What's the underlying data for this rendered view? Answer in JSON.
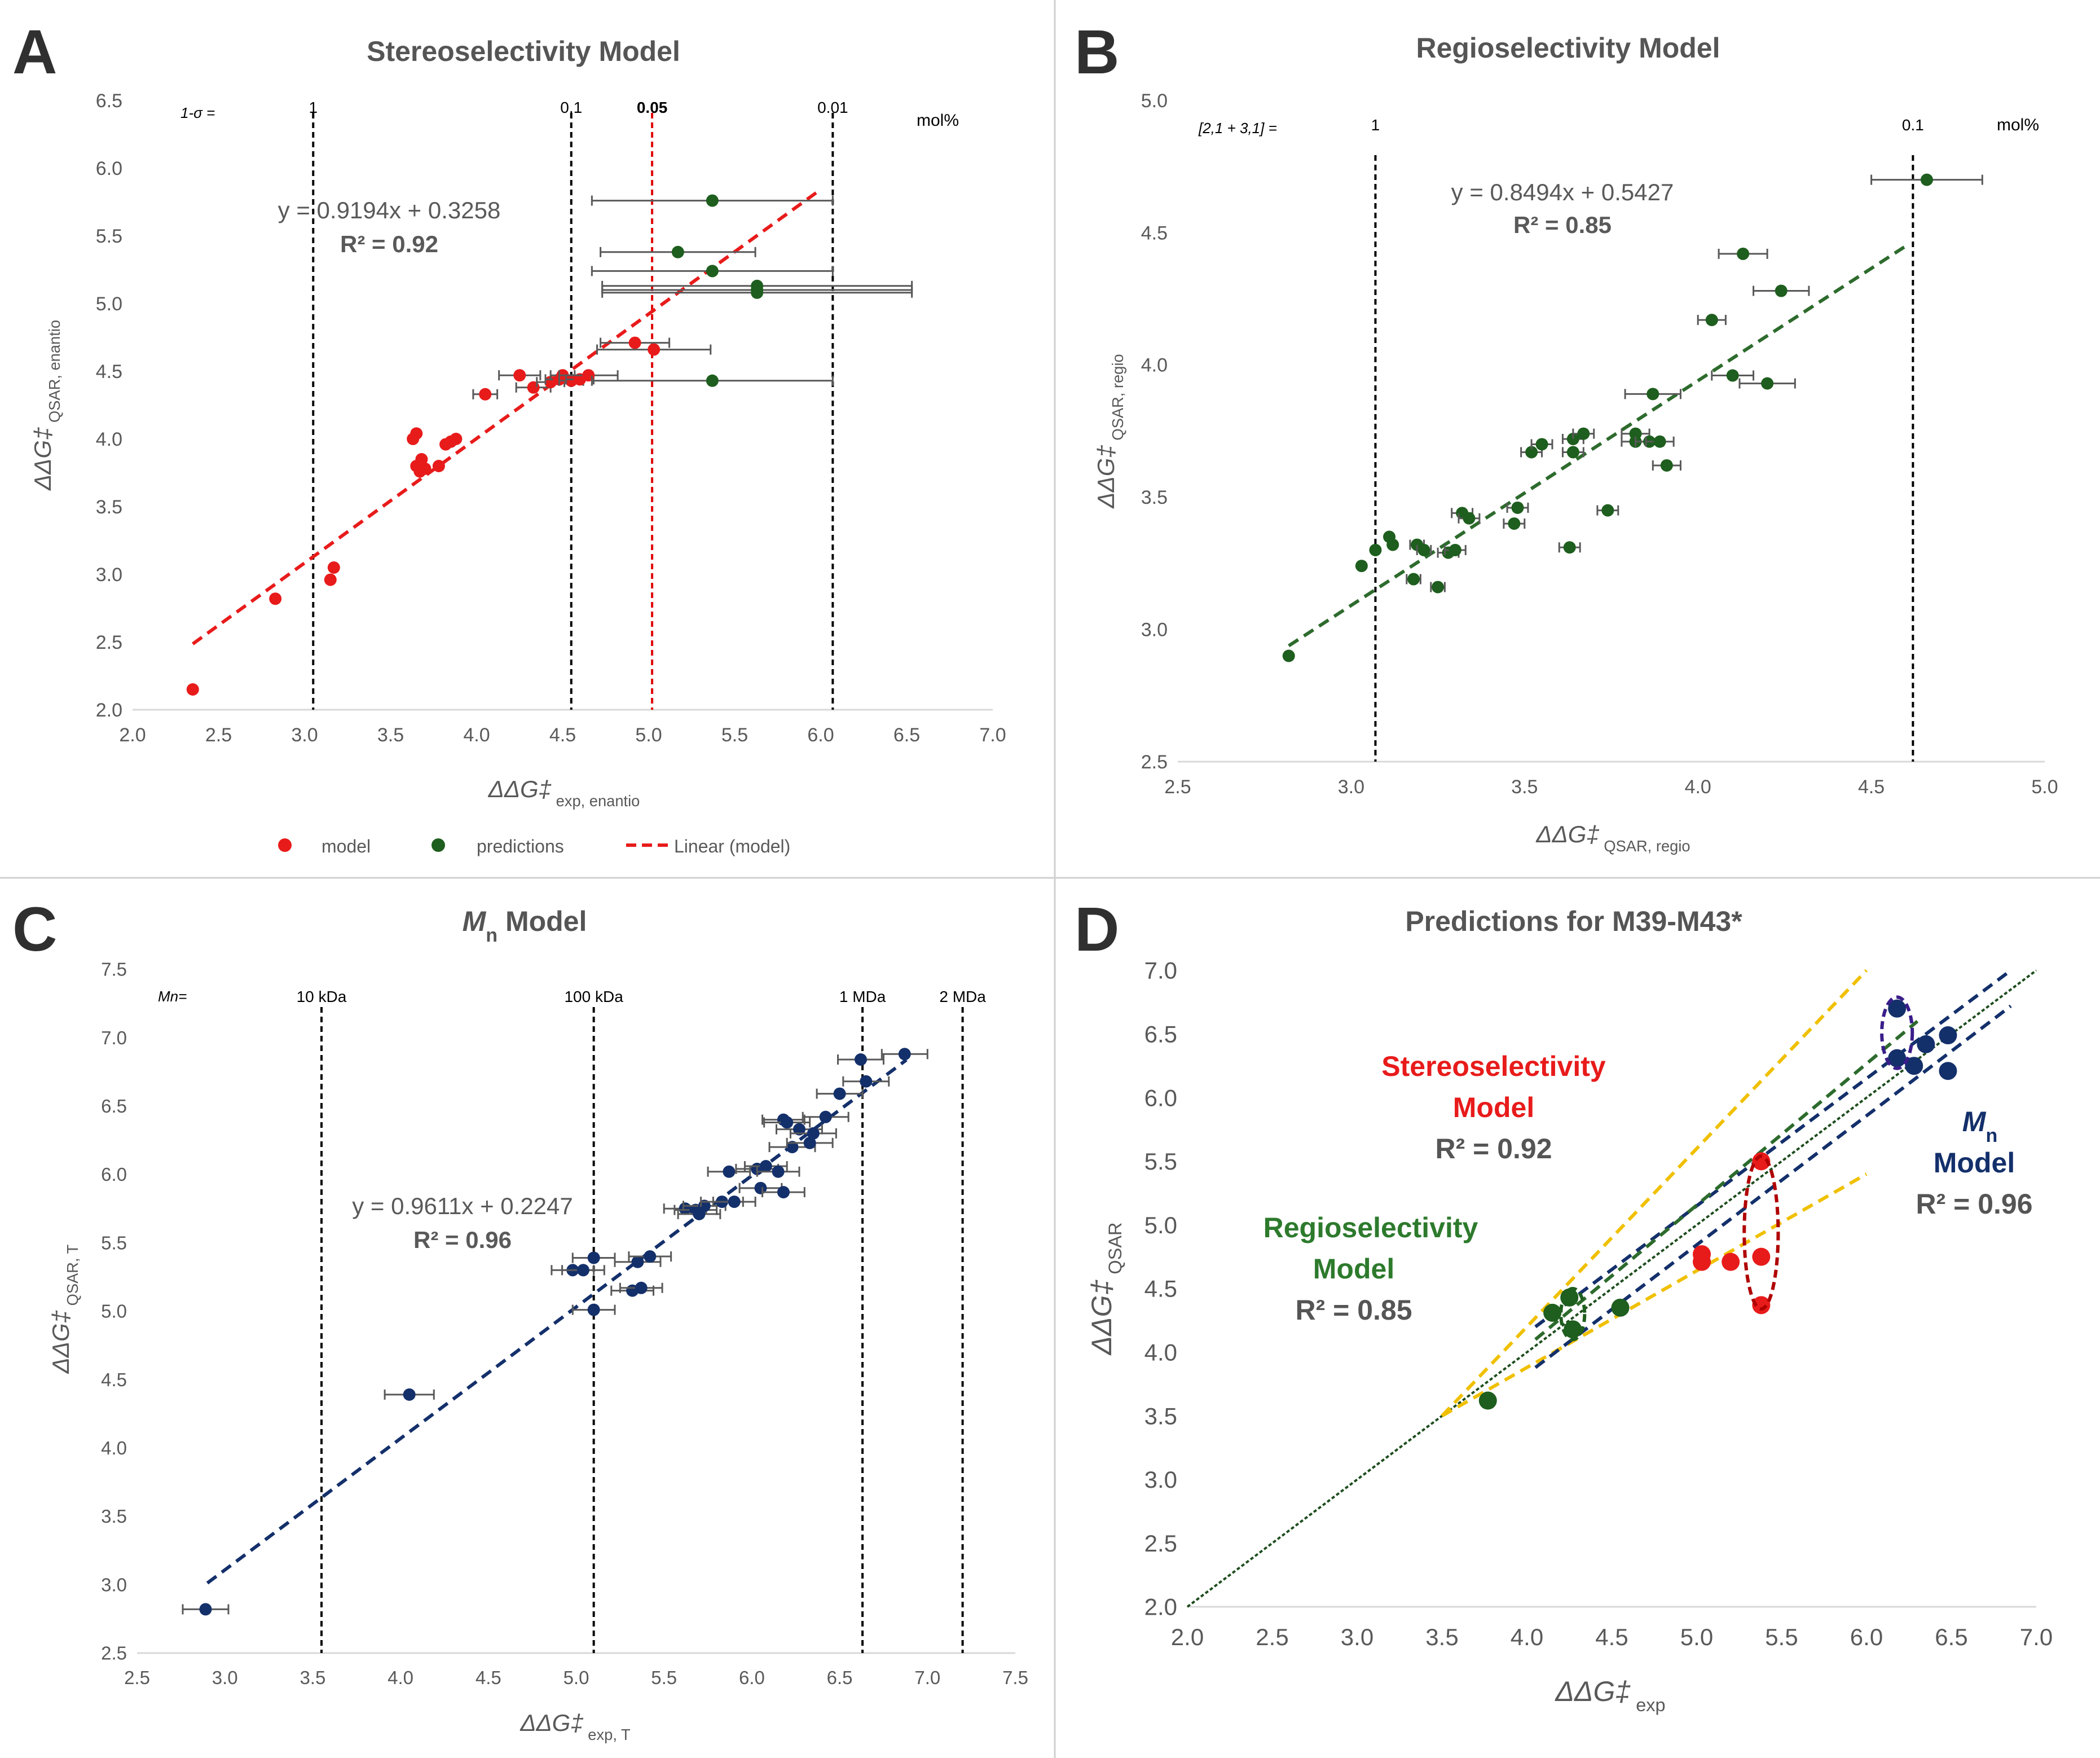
{
  "chart_data": [
    {
      "panel": "A",
      "type": "scatter",
      "title": "Stereoselectivity Model",
      "xlabel": {
        "main": "ΔΔG‡",
        "sub": "exp, enantio"
      },
      "ylabel": {
        "main": "ΔΔG‡",
        "sub": "QSAR, enantio"
      },
      "xlim": [
        2.0,
        7.0
      ],
      "ylim": [
        2.0,
        6.5
      ],
      "xticks": [
        "2.0",
        "2.5",
        "3.0",
        "3.5",
        "4.0",
        "4.5",
        "5.0",
        "5.5",
        "6.0",
        "6.5",
        "7.0"
      ],
      "yticks": [
        "2.0",
        "2.5",
        "3.0",
        "3.5",
        "4.0",
        "4.5",
        "5.0",
        "5.5",
        "6.0",
        "6.5"
      ],
      "equation": "y = 0.9194x + 0.3258",
      "r2": "R² = 0.92",
      "vlines": [
        {
          "x": 3.05,
          "label": "1",
          "color": "#000000"
        },
        {
          "x": 4.55,
          "label": "0.1",
          "color": "#000000"
        },
        {
          "x": 5.02,
          "label": "0.05",
          "color": "#e00000"
        },
        {
          "x": 6.07,
          "label": "0.01",
          "color": "#000000"
        }
      ],
      "prefix_label": "1-σ =",
      "unit_label": "mol%",
      "trend": {
        "x": [
          2.35,
          6.0
        ],
        "color": "#e81b1b"
      },
      "series": [
        {
          "name": "model",
          "color": "#e81b1b",
          "points": [
            [
              2.35,
              2.15
            ],
            [
              2.83,
              2.82
            ],
            [
              3.15,
              2.96
            ],
            [
              3.17,
              3.05
            ],
            [
              3.63,
              4.0
            ],
            [
              3.65,
              4.04
            ],
            [
              3.65,
              3.8
            ],
            [
              3.67,
              3.76
            ],
            [
              3.68,
              3.85
            ],
            [
              3.7,
              3.78
            ],
            [
              3.78,
              3.8
            ],
            [
              3.82,
              3.96
            ],
            [
              3.85,
              3.98
            ],
            [
              3.88,
              4.0
            ],
            [
              4.05,
              4.33
            ],
            [
              4.25,
              4.47
            ],
            [
              4.33,
              4.38
            ],
            [
              4.43,
              4.42
            ],
            [
              4.48,
              4.44
            ],
            [
              4.5,
              4.47
            ],
            [
              4.55,
              4.43
            ],
            [
              4.6,
              4.44
            ],
            [
              4.65,
              4.47
            ],
            [
              4.92,
              4.71
            ],
            [
              5.03,
              4.66
            ]
          ],
          "xerr": [
            0,
            0,
            0,
            0,
            0,
            0,
            0,
            0,
            0,
            0,
            0,
            0,
            0,
            0,
            0.07,
            0.12,
            0.1,
            0.08,
            0.08,
            0.07,
            0.07,
            0.08,
            0.17,
            0.2,
            0.33
          ]
        },
        {
          "name": "predictions",
          "color": "#1e5e1e",
          "points": [
            [
              5.37,
              5.76
            ],
            [
              5.17,
              5.38
            ],
            [
              5.37,
              5.24
            ],
            [
              5.63,
              5.13
            ],
            [
              5.63,
              5.1
            ],
            [
              5.63,
              5.08
            ],
            [
              5.37,
              4.43
            ]
          ],
          "xerr": [
            0.7,
            0.45,
            0.7,
            0.9,
            0.9,
            0.9,
            0.7
          ]
        }
      ],
      "legend": [
        "model",
        "predictions",
        "Linear (model)"
      ]
    },
    {
      "panel": "B",
      "type": "scatter",
      "title": "Regioselectivity Model",
      "xlabel": {
        "main": "ΔΔG‡",
        "sub": "QSAR, regio"
      },
      "ylabel": {
        "main": "ΔΔG‡",
        "sub": "QSAR, regio"
      },
      "xlim": [
        2.5,
        5.0
      ],
      "ylim": [
        2.5,
        5.0
      ],
      "xticks": [
        "2.5",
        "3.0",
        "3.5",
        "4.0",
        "4.5",
        "5.0"
      ],
      "yticks": [
        "2.5",
        "3.0",
        "3.5",
        "4.0",
        "4.5",
        "5.0"
      ],
      "equation": "y = 0.8494x + 0.5427",
      "r2": "R² = 0.85",
      "vlines": [
        {
          "x": 3.07,
          "label": "1",
          "color": "#000000"
        },
        {
          "x": 4.62,
          "label": "0.1",
          "color": "#000000"
        }
      ],
      "prefix_label": "[2,1 + 3,1] =",
      "unit_label": "mol%",
      "trend": {
        "x": [
          2.82,
          4.6
        ],
        "color": "#2d6b2d"
      },
      "series": [
        {
          "name": "predictions",
          "color": "#1e5e1e",
          "points": [
            [
              2.82,
              2.9
            ],
            [
              3.03,
              3.24
            ],
            [
              3.07,
              3.3
            ],
            [
              3.11,
              3.35
            ],
            [
              3.12,
              3.32
            ],
            [
              3.18,
              3.19
            ],
            [
              3.19,
              3.32
            ],
            [
              3.21,
              3.3
            ],
            [
              3.25,
              3.16
            ],
            [
              3.28,
              3.29
            ],
            [
              3.3,
              3.3
            ],
            [
              3.32,
              3.44
            ],
            [
              3.34,
              3.42
            ],
            [
              3.47,
              3.4
            ],
            [
              3.48,
              3.46
            ],
            [
              3.52,
              3.67
            ],
            [
              3.55,
              3.7
            ],
            [
              3.63,
              3.31
            ],
            [
              3.64,
              3.67
            ],
            [
              3.64,
              3.72
            ],
            [
              3.67,
              3.74
            ],
            [
              3.74,
              3.45
            ],
            [
              3.82,
              3.74
            ],
            [
              3.82,
              3.71
            ],
            [
              3.86,
              3.71
            ],
            [
              3.87,
              3.89
            ],
            [
              3.89,
              3.71
            ],
            [
              3.91,
              3.62
            ],
            [
              4.04,
              4.17
            ],
            [
              4.1,
              3.96
            ],
            [
              4.13,
              4.42
            ],
            [
              4.2,
              3.93
            ],
            [
              4.24,
              4.28
            ],
            [
              4.66,
              4.7
            ]
          ],
          "xerr": [
            0,
            0,
            0,
            0,
            0,
            0.02,
            0.02,
            0.02,
            0.02,
            0.03,
            0.03,
            0.03,
            0.03,
            0.03,
            0.03,
            0.03,
            0.03,
            0.03,
            0.03,
            0.03,
            0.03,
            0.03,
            0.04,
            0.04,
            0.04,
            0.08,
            0.04,
            0.04,
            0.04,
            0.06,
            0.07,
            0.08,
            0.08,
            0.16
          ]
        }
      ]
    },
    {
      "panel": "C",
      "type": "scatter",
      "title": {
        "italic": "M",
        "sub": "n",
        "rest": " Model"
      },
      "xlabel": {
        "main": "ΔΔG‡",
        "sub": "exp, T"
      },
      "ylabel": {
        "main": "ΔΔG‡",
        "sub": "QSAR, T"
      },
      "xlim": [
        2.5,
        7.5
      ],
      "ylim": [
        2.5,
        7.5
      ],
      "xticks": [
        "2.5",
        "3.0",
        "3.5",
        "4.0",
        "4.5",
        "5.0",
        "5.5",
        "6.0",
        "6.5",
        "7.0",
        "7.5"
      ],
      "yticks": [
        "2.5",
        "3.0",
        "3.5",
        "4.0",
        "4.5",
        "5.0",
        "5.5",
        "6.0",
        "6.5",
        "7.0",
        "7.5"
      ],
      "equation": "y = 0.9611x + 0.2247",
      "r2": "R² = 0.96",
      "vlines": [
        {
          "x": 3.55,
          "label": "10 kDa",
          "color": "#000000"
        },
        {
          "x": 5.1,
          "label": "100 kDa",
          "color": "#000000"
        },
        {
          "x": 6.63,
          "label": "1 MDa",
          "color": "#000000"
        },
        {
          "x": 7.2,
          "label": "2 MDa",
          "color": "#000000"
        }
      ],
      "prefix_label": "Mn=",
      "trend": {
        "x": [
          2.9,
          6.88
        ],
        "color": "#14306b"
      },
      "series": [
        {
          "name": "Mn",
          "color": "#14306b",
          "points": [
            [
              2.89,
              2.82
            ],
            [
              4.05,
              4.39
            ],
            [
              4.98,
              5.3
            ],
            [
              5.04,
              5.3
            ],
            [
              5.1,
              5.39
            ],
            [
              5.1,
              5.01
            ],
            [
              5.32,
              5.15
            ],
            [
              5.35,
              5.36
            ],
            [
              5.37,
              5.17
            ],
            [
              5.42,
              5.4
            ],
            [
              5.62,
              5.75
            ],
            [
              5.68,
              5.74
            ],
            [
              5.7,
              5.71
            ],
            [
              5.73,
              5.77
            ],
            [
              5.83,
              5.8
            ],
            [
              5.87,
              6.02
            ],
            [
              5.9,
              5.8
            ],
            [
              6.03,
              6.04
            ],
            [
              6.05,
              5.9
            ],
            [
              6.08,
              6.06
            ],
            [
              6.15,
              6.02
            ],
            [
              6.18,
              6.4
            ],
            [
              6.18,
              5.87
            ],
            [
              6.2,
              6.38
            ],
            [
              6.23,
              6.2
            ],
            [
              6.27,
              6.33
            ],
            [
              6.33,
              6.23
            ],
            [
              6.35,
              6.3
            ],
            [
              6.42,
              6.42
            ],
            [
              6.5,
              6.59
            ],
            [
              6.62,
              6.84
            ],
            [
              6.65,
              6.68
            ],
            [
              6.87,
              6.88
            ]
          ],
          "xerr": [
            0.13,
            0.14,
            0.12,
            0.12,
            0.12,
            0.12,
            0.12,
            0.13,
            0.12,
            0.12,
            0.12,
            0.12,
            0.12,
            0.12,
            0.12,
            0.12,
            0.12,
            0.12,
            0.12,
            0.12,
            0.12,
            0.12,
            0.12,
            0.13,
            0.13,
            0.13,
            0.13,
            0.13,
            0.13,
            0.13,
            0.13,
            0.13,
            0.13
          ]
        }
      ]
    },
    {
      "panel": "D",
      "type": "scatter",
      "title": "Predictions for M39-M43*",
      "xlabel": {
        "main": "ΔΔG‡",
        "sub": "exp"
      },
      "ylabel": {
        "main": "ΔΔG‡",
        "sub": "QSAR"
      },
      "xlim": [
        2.0,
        7.0
      ],
      "ylim": [
        2.0,
        7.0
      ],
      "xticks": [
        "2.0",
        "2.5",
        "3.0",
        "3.5",
        "4.0",
        "4.5",
        "5.0",
        "5.5",
        "6.0",
        "6.5",
        "7.0"
      ],
      "yticks": [
        "2.0",
        "2.5",
        "3.0",
        "3.5",
        "4.0",
        "4.5",
        "5.0",
        "5.5",
        "6.0",
        "6.5",
        "7.0"
      ],
      "identity": {
        "x": [
          2.0,
          7.0
        ],
        "color": "#1d4d1d"
      },
      "lines": [
        {
          "name": "yellow-upper",
          "color": "#f0c000",
          "x": [
            3.5,
            6.0
          ],
          "y": [
            3.5,
            7.0
          ]
        },
        {
          "name": "yellow-lower",
          "color": "#f0c000",
          "x": [
            3.5,
            6.0
          ],
          "y": [
            3.5,
            5.4
          ]
        },
        {
          "name": "blue-upper",
          "color": "#14306b",
          "x": [
            4.05,
            6.85
          ],
          "y": [
            4.2,
            7.0
          ]
        },
        {
          "name": "blue-lower",
          "color": "#14306b",
          "x": [
            4.05,
            6.85
          ],
          "y": [
            3.88,
            6.72
          ]
        },
        {
          "name": "green-upper",
          "color": "#2d6b2d",
          "x": [
            4.05,
            6.3
          ],
          "y": [
            4.1,
            6.6
          ]
        }
      ],
      "series": [
        {
          "name": "Stereoselectivity Model",
          "color": "#e81b1b",
          "r2": "R² = 0.92",
          "points": [
            [
              5.03,
              4.77
            ],
            [
              5.03,
              4.71
            ],
            [
              5.2,
              4.71
            ],
            [
              5.38,
              5.5
            ],
            [
              5.38,
              4.75
            ],
            [
              5.38,
              4.37
            ]
          ]
        },
        {
          "name": "Regioselectivity Model",
          "color": "#1e5e1e",
          "r2": "R² = 0.85",
          "points": [
            [
              3.77,
              3.62
            ],
            [
              4.15,
              4.31
            ],
            [
              4.25,
              4.43
            ],
            [
              4.27,
              4.18
            ],
            [
              4.55,
              4.35
            ]
          ]
        },
        {
          "name": "Mn Model",
          "color": "#14306b",
          "r2": "R² = 0.96",
          "points": [
            [
              6.18,
              6.7
            ],
            [
              6.18,
              6.31
            ],
            [
              6.28,
              6.25
            ],
            [
              6.35,
              6.42
            ],
            [
              6.48,
              6.49
            ],
            [
              6.48,
              6.21
            ]
          ]
        }
      ],
      "labels": {
        "stereo_line1": "Stereoselectivity",
        "stereo_line2": "Model",
        "stereo_r2": "R² = 0.92",
        "regio_line1": "Regioselectivity",
        "regio_line2": "Model",
        "regio_r2": "R² = 0.85",
        "mn_line1": "M",
        "mn_sub": "n",
        "mn_line2": "Model",
        "mn_r2": "R² = 0.96"
      },
      "ellipses": [
        {
          "name": "red-ellipse",
          "color": "#b00000",
          "cx": 5.38,
          "cy": 4.94,
          "rx": 0.1,
          "ry": 0.6
        },
        {
          "name": "green-ellipse",
          "color": "#1e5e1e",
          "cx": 4.27,
          "cy": 4.3,
          "rx": 0.07,
          "ry": 0.2
        },
        {
          "name": "purple-ellipse",
          "color": "#3a1d8a",
          "cx": 6.18,
          "cy": 6.51,
          "rx": 0.09,
          "ry": 0.28
        }
      ]
    }
  ],
  "panel_labels": [
    "A",
    "B",
    "C",
    "D"
  ]
}
